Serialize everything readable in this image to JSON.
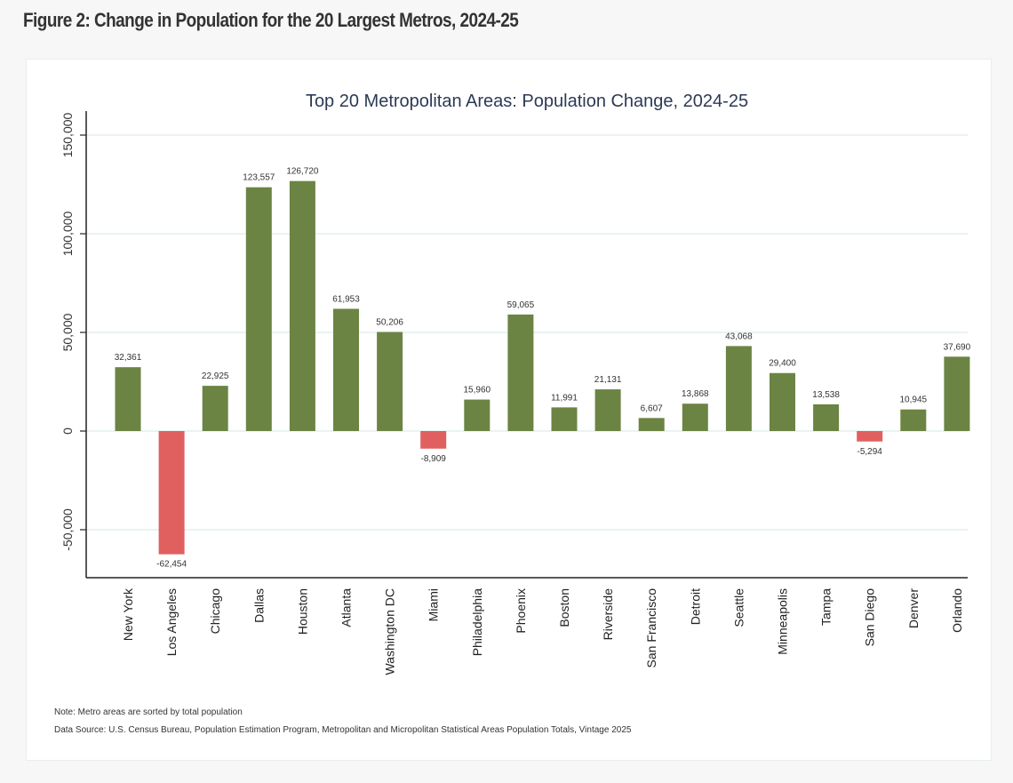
{
  "figure_title": "Figure 2: Change in Population for the 20 Largest Metros, 2024-25",
  "notes": {
    "note": "Note: Metro areas are sorted by total population",
    "source": "Data Source: U.S. Census Bureau, Population Estimation Program, Metropolitan and Micropolitan Statistical Areas Population Totals, Vintage 2025"
  },
  "colors": {
    "positive": "#6b8443",
    "negative": "#e06060",
    "grid": "#e3efee",
    "axis": "#222222",
    "title": "#2c3a55"
  },
  "chart_data": {
    "type": "bar",
    "title": "Top 20 Metropolitan Areas: Population Change, 2024-25",
    "xlabel": "",
    "ylabel": "",
    "ylim": [
      -75000,
      165000
    ],
    "yticks": [
      -50000,
      0,
      50000,
      100000,
      150000
    ],
    "ytick_labels": [
      "-50,000",
      "0",
      "50,000",
      "100,000",
      "150,000"
    ],
    "grid": true,
    "legend": "none",
    "categories": [
      "New York",
      "Los Angeles",
      "Chicago",
      "Dallas",
      "Houston",
      "Atlanta",
      "Washington DC",
      "Miami",
      "Philadelphia",
      "Phoenix",
      "Boston",
      "Riverside",
      "San Francisco",
      "Detroit",
      "Seattle",
      "Minneapolis",
      "Tampa",
      "San Diego",
      "Denver",
      "Orlando"
    ],
    "values": [
      32361,
      -62454,
      22925,
      123557,
      126720,
      61953,
      50206,
      -8909,
      15960,
      59065,
      11991,
      21131,
      6607,
      13868,
      43068,
      29400,
      13538,
      -5294,
      10945,
      37690
    ],
    "data_labels": [
      "32,361",
      "-62,454",
      "22,925",
      "123,557",
      "126,720",
      "61,953",
      "50,206",
      "-8,909",
      "15,960",
      "59,065",
      "11,991",
      "21,131",
      "6,607",
      "13,868",
      "43,068",
      "29,400",
      "13,538",
      "-5,294",
      "10,945",
      "37,690"
    ]
  }
}
